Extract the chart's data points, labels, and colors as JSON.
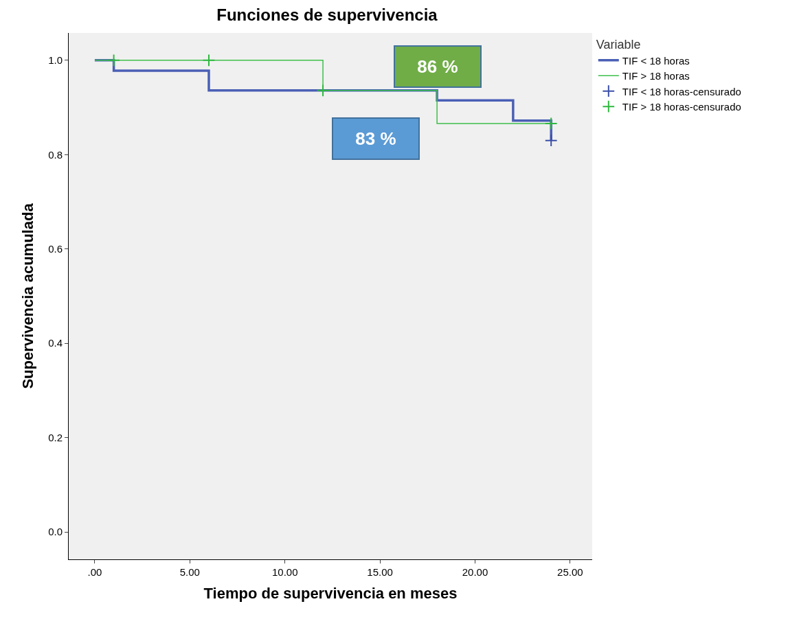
{
  "chart_data": {
    "type": "step",
    "title": "Funciones de supervivencia",
    "xlabel": "Tiempo de supervivencia en meses",
    "ylabel": "Supervivencia acumulada",
    "legend_title": "Variable",
    "series": [
      {
        "name": "TIF < 18 horas",
        "color": "#4a5fb5",
        "x": [
          0,
          1,
          6,
          18,
          22,
          24
        ],
        "values": [
          1.0,
          0.978,
          0.936,
          0.915,
          0.872,
          0.83
        ]
      },
      {
        "name": "TIF > 18 horas",
        "color": "#3cbf4a",
        "x": [
          0,
          12,
          18,
          24
        ],
        "values": [
          1.0,
          0.936,
          0.866,
          0.866
        ]
      },
      {
        "name": "TIF < 18 horas-censurado",
        "type": "scatter",
        "marker": "cross",
        "color": "#3b4fa8",
        "x": [
          24
        ],
        "values": [
          0.83
        ]
      },
      {
        "name": "TIF > 18 horas-censurado",
        "type": "scatter",
        "marker": "cross",
        "color": "#2fb83f",
        "x": [
          1,
          6,
          12,
          24
        ],
        "values": [
          1.0,
          1.0,
          0.936,
          0.866
        ]
      }
    ],
    "annotations": [
      "86 %",
      "83 %"
    ],
    "xlim": [
      -1.37,
      26.16
    ],
    "ylim": [
      -0.058,
      1.058
    ],
    "xticks": [
      {
        "value": 0,
        "label": ".00"
      },
      {
        "value": 5,
        "label": "5.00"
      },
      {
        "value": 10,
        "label": "10.00"
      },
      {
        "value": 15,
        "label": "15.00"
      },
      {
        "value": 20,
        "label": "20.00"
      },
      {
        "value": 25,
        "label": "25.00"
      }
    ],
    "yticks": [
      {
        "value": 0,
        "label": "0.0"
      },
      {
        "value": 0.2,
        "label": "0.2"
      },
      {
        "value": 0.4,
        "label": "0.4"
      },
      {
        "value": 0.6,
        "label": "0.6"
      },
      {
        "value": 0.8,
        "label": "0.8"
      },
      {
        "value": 1.0,
        "label": "1.0"
      }
    ],
    "grid": false,
    "legend": "top right"
  }
}
